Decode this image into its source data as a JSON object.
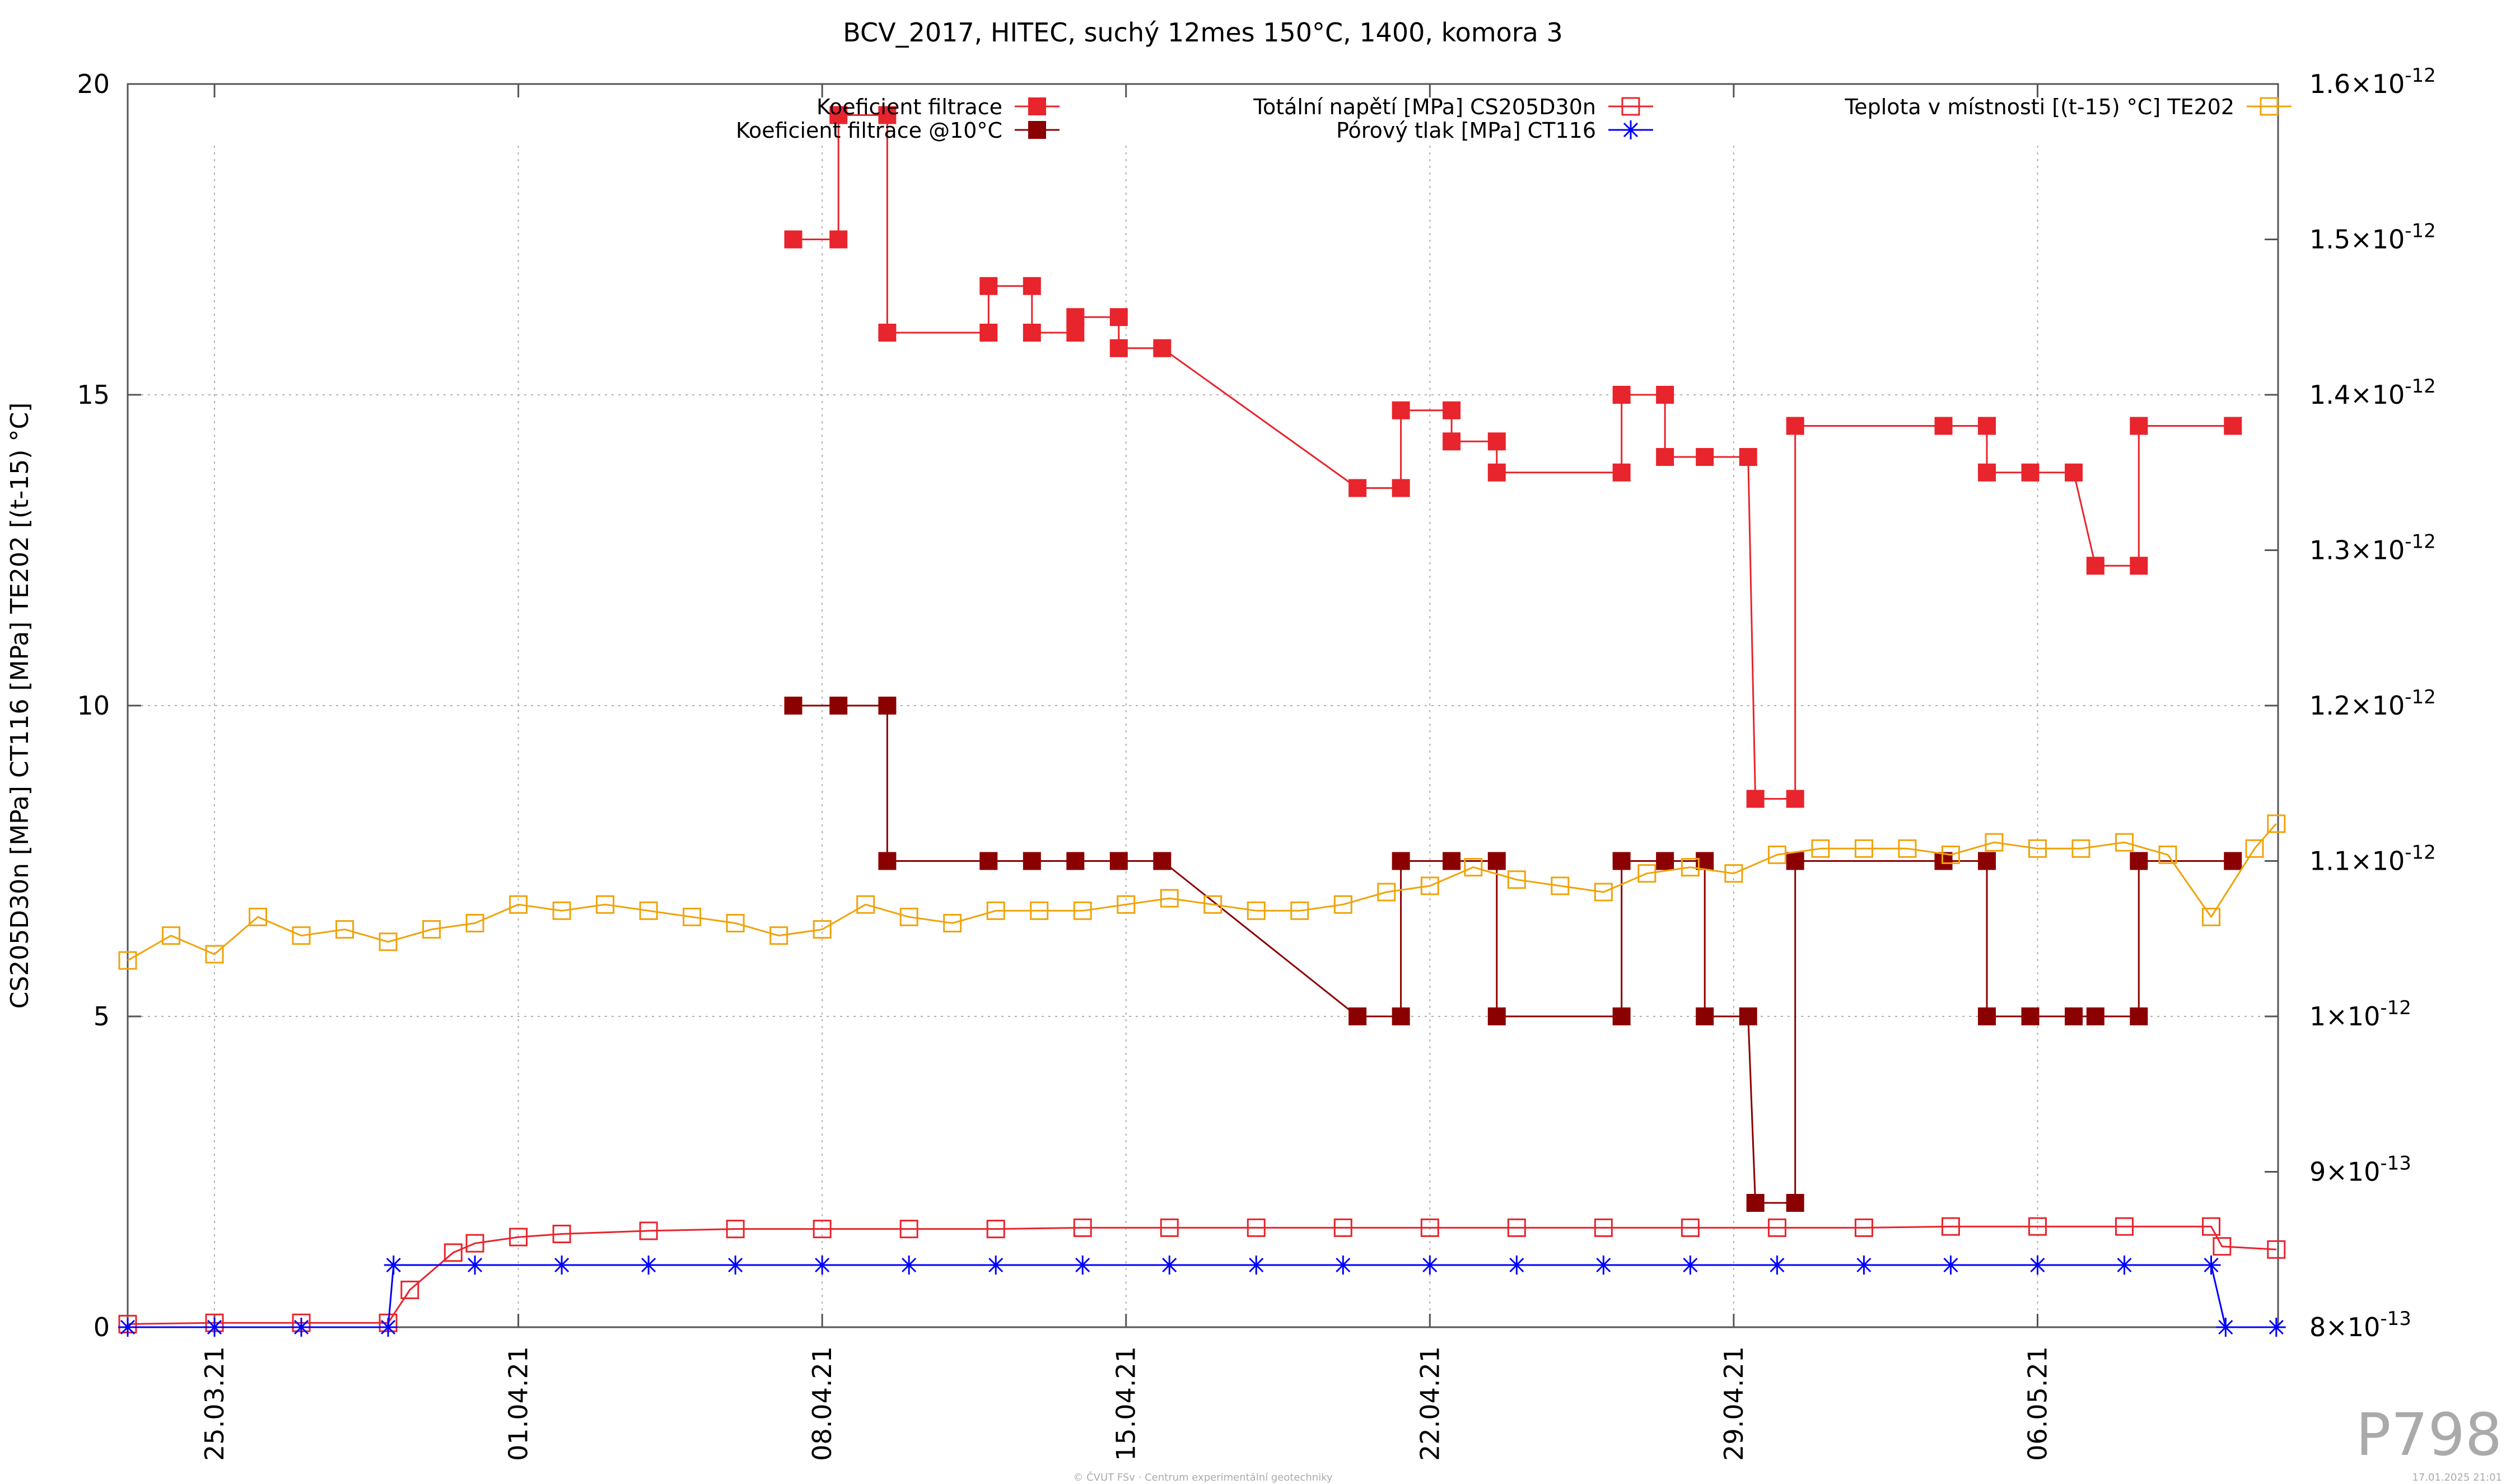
{
  "chart_data": {
    "type": "line",
    "title": "BCV_2017, HITEC, suchý 12mes 150°C, 1400, komora 3",
    "ylabel_left": "CS205D30n [MPa] CT116 [MPa] TE202 [(t-15) °C]",
    "x_range": [
      "2021-03-23",
      "2021-05-11T13:00"
    ],
    "x_ticks": [
      {
        "date": "2021-03-25",
        "label": "25.03.21"
      },
      {
        "date": "2021-04-01",
        "label": "01.04.21"
      },
      {
        "date": "2021-04-08",
        "label": "08.04.21"
      },
      {
        "date": "2021-04-15",
        "label": "15.04.21"
      },
      {
        "date": "2021-04-22",
        "label": "22.04.21"
      },
      {
        "date": "2021-04-29",
        "label": "29.04.21"
      },
      {
        "date": "2021-05-06",
        "label": "06.05.21"
      }
    ],
    "y_left": {
      "min": 0,
      "max": 20,
      "ticks": [
        "0",
        "5",
        "10",
        "15",
        "20"
      ]
    },
    "y_right": {
      "min": 8e-13,
      "max": 1.6e-12,
      "ticks": [
        {
          "v": 8e-13,
          "mant": "8",
          "exp": "-13"
        },
        {
          "v": 9e-13,
          "mant": "9",
          "exp": "-13"
        },
        {
          "v": 1e-12,
          "mant": "1",
          "exp": "-12"
        },
        {
          "v": 1.1e-12,
          "mant": "1.1",
          "exp": "-12"
        },
        {
          "v": 1.2e-12,
          "mant": "1.2",
          "exp": "-12"
        },
        {
          "v": 1.3e-12,
          "mant": "1.3",
          "exp": "-12"
        },
        {
          "v": 1.4e-12,
          "mant": "1.4",
          "exp": "-12"
        },
        {
          "v": 1.5e-12,
          "mant": "1.5",
          "exp": "-12"
        },
        {
          "v": 1.6e-12,
          "mant": "1.6",
          "exp": "-12"
        }
      ],
      "times_sign": "×10"
    },
    "grid": true,
    "legend_position": "top",
    "series": [
      {
        "name": "Koeficient filtrace",
        "axis": "right",
        "color": "#e8242c",
        "marker": "filled-square",
        "line": "step",
        "x": [
          "2021-04-07T08:00",
          "2021-04-08T09:00",
          "2021-04-08T09:00",
          "2021-04-09T12:00",
          "2021-04-09T12:00",
          "2021-04-11T20:00",
          "2021-04-11T20:00",
          "2021-04-12T20:00",
          "2021-04-12T20:00",
          "2021-04-13T20:00",
          "2021-04-13T20:00",
          "2021-04-14T20:00",
          "2021-04-14T20:00",
          "2021-04-15T20:00",
          "2021-04-20T08:00",
          "2021-04-21T08:00",
          "2021-04-21T08:00",
          "2021-04-22T12:00",
          "2021-04-22T12:00",
          "2021-04-23T13:00",
          "2021-04-23T13:00",
          "2021-04-26T10:00",
          "2021-04-26T10:00",
          "2021-04-27T10:00",
          "2021-04-27T10:00",
          "2021-04-28T08:00",
          "2021-04-29T08:00",
          "2021-04-29T12:00",
          "2021-04-30T10:00",
          "2021-04-30T10:00",
          "2021-05-03T20:00",
          "2021-05-04T20:00",
          "2021-05-04T20:00",
          "2021-05-05T20:00",
          "2021-05-06T20:00",
          "2021-05-07T08:00",
          "2021-05-08T08:00",
          "2021-05-08T08:00",
          "2021-05-10T12:00"
        ],
        "values": [
          1.5e-12,
          1.5e-12,
          1.58e-12,
          1.58e-12,
          1.44e-12,
          1.44e-12,
          1.47e-12,
          1.47e-12,
          1.44e-12,
          1.44e-12,
          1.45e-12,
          1.45e-12,
          1.43e-12,
          1.43e-12,
          1.34e-12,
          1.34e-12,
          1.39e-12,
          1.39e-12,
          1.37e-12,
          1.37e-12,
          1.35e-12,
          1.35e-12,
          1.4e-12,
          1.4e-12,
          1.36e-12,
          1.36e-12,
          1.36e-12,
          1.14e-12,
          1.14e-12,
          1.38e-12,
          1.38e-12,
          1.38e-12,
          1.35e-12,
          1.35e-12,
          1.35e-12,
          1.29e-12,
          1.29e-12,
          1.38e-12,
          1.38e-12
        ]
      },
      {
        "name": "Koeficient filtrace @10°C",
        "axis": "right",
        "color": "#8b0000",
        "marker": "filled-square",
        "line": "step",
        "x": [
          "2021-04-07T08:00",
          "2021-04-08T09:00",
          "2021-04-09T12:00",
          "2021-04-09T12:00",
          "2021-04-11T20:00",
          "2021-04-12T20:00",
          "2021-04-13T20:00",
          "2021-04-14T20:00",
          "2021-04-15T20:00",
          "2021-04-20T08:00",
          "2021-04-21T08:00",
          "2021-04-21T08:00",
          "2021-04-22T12:00",
          "2021-04-23T13:00",
          "2021-04-23T13:00",
          "2021-04-26T10:00",
          "2021-04-26T10:00",
          "2021-04-27T10:00",
          "2021-04-28T08:00",
          "2021-04-28T08:00",
          "2021-04-29T08:00",
          "2021-04-29T12:00",
          "2021-04-30T10:00",
          "2021-04-30T10:00",
          "2021-05-03T20:00",
          "2021-05-04T20:00",
          "2021-05-04T20:00",
          "2021-05-05T20:00",
          "2021-05-06T20:00",
          "2021-05-07T08:00",
          "2021-05-08T08:00",
          "2021-05-08T08:00",
          "2021-05-10T12:00"
        ],
        "values": [
          1.2e-12,
          1.2e-12,
          1.2e-12,
          1.1e-12,
          1.1e-12,
          1.1e-12,
          1.1e-12,
          1.1e-12,
          1.1e-12,
          1e-12,
          1e-12,
          1.1e-12,
          1.1e-12,
          1.1e-12,
          1e-12,
          1e-12,
          1.1e-12,
          1.1e-12,
          1.1e-12,
          1e-12,
          1e-12,
          8.8e-13,
          8.8e-13,
          1.1e-12,
          1.1e-12,
          1.1e-12,
          1e-12,
          1e-12,
          1e-12,
          1e-12,
          1e-12,
          1.1e-12,
          1.1e-12
        ]
      },
      {
        "name": "Totální napětí [MPa] CS205D30n",
        "axis": "left",
        "color": "#e8242c",
        "marker": "open-square",
        "line": "solid",
        "x": [
          "2021-03-23",
          "2021-03-25",
          "2021-03-27",
          "2021-03-29",
          "2021-03-29T12:00",
          "2021-03-30T12:00",
          "2021-03-31",
          "2021-04-01",
          "2021-04-02",
          "2021-04-04",
          "2021-04-06",
          "2021-04-08",
          "2021-04-10",
          "2021-04-12",
          "2021-04-14",
          "2021-04-16",
          "2021-04-18",
          "2021-04-20",
          "2021-04-22",
          "2021-04-24",
          "2021-04-26",
          "2021-04-28",
          "2021-04-30",
          "2021-05-02",
          "2021-05-04",
          "2021-05-06",
          "2021-05-08",
          "2021-05-10",
          "2021-05-10T06:00",
          "2021-05-11T12:00"
        ],
        "values": [
          0.05,
          0.07,
          0.07,
          0.07,
          0.6,
          1.2,
          1.35,
          1.45,
          1.5,
          1.55,
          1.58,
          1.58,
          1.58,
          1.58,
          1.6,
          1.6,
          1.6,
          1.6,
          1.6,
          1.6,
          1.6,
          1.6,
          1.6,
          1.6,
          1.62,
          1.62,
          1.62,
          1.62,
          1.3,
          1.25
        ]
      },
      {
        "name": "Pórový tlak [MPa] CT116",
        "axis": "left",
        "color": "#0000ff",
        "marker": "star",
        "line": "solid",
        "x": [
          "2021-03-23",
          "2021-03-25",
          "2021-03-27",
          "2021-03-29",
          "2021-03-29T03:00",
          "2021-03-31",
          "2021-04-02",
          "2021-04-04",
          "2021-04-06",
          "2021-04-08",
          "2021-04-10",
          "2021-04-12",
          "2021-04-14",
          "2021-04-16",
          "2021-04-18",
          "2021-04-20",
          "2021-04-22",
          "2021-04-24",
          "2021-04-26",
          "2021-04-28",
          "2021-04-30",
          "2021-05-02",
          "2021-05-04",
          "2021-05-06",
          "2021-05-08",
          "2021-05-10",
          "2021-05-10T08:00",
          "2021-05-11T12:00"
        ],
        "values": [
          0,
          0,
          0,
          0,
          1.0,
          1.0,
          1.0,
          1.0,
          1.0,
          1.0,
          1.0,
          1.0,
          1.0,
          1.0,
          1.0,
          1.0,
          1.0,
          1.0,
          1.0,
          1.0,
          1.0,
          1.0,
          1.0,
          1.0,
          1.0,
          1.0,
          0,
          0
        ]
      },
      {
        "name": "Teplota v místnosti [(t-15) °C] TE202",
        "axis": "left",
        "color": "#f0a30a",
        "marker": "open-square",
        "line": "solid",
        "x": [
          "2021-03-23",
          "2021-03-24",
          "2021-03-25",
          "2021-03-26",
          "2021-03-27",
          "2021-03-28",
          "2021-03-29",
          "2021-03-30",
          "2021-03-31",
          "2021-04-01",
          "2021-04-02",
          "2021-04-03",
          "2021-04-04",
          "2021-04-05",
          "2021-04-06",
          "2021-04-07",
          "2021-04-08",
          "2021-04-09",
          "2021-04-10",
          "2021-04-11",
          "2021-04-12",
          "2021-04-13",
          "2021-04-14",
          "2021-04-15",
          "2021-04-16",
          "2021-04-17",
          "2021-04-18",
          "2021-04-19",
          "2021-04-20",
          "2021-04-21",
          "2021-04-22",
          "2021-04-23",
          "2021-04-24",
          "2021-04-25",
          "2021-04-26",
          "2021-04-27",
          "2021-04-28",
          "2021-04-29",
          "2021-04-30",
          "2021-05-01",
          "2021-05-02",
          "2021-05-03",
          "2021-05-04",
          "2021-05-05",
          "2021-05-06",
          "2021-05-07",
          "2021-05-08",
          "2021-05-09",
          "2021-05-10",
          "2021-05-11",
          "2021-05-11T12:00"
        ],
        "values": [
          5.9,
          6.3,
          6.0,
          6.6,
          6.3,
          6.4,
          6.2,
          6.4,
          6.5,
          6.8,
          6.7,
          6.8,
          6.7,
          6.6,
          6.5,
          6.3,
          6.4,
          6.8,
          6.6,
          6.5,
          6.7,
          6.7,
          6.7,
          6.8,
          6.9,
          6.8,
          6.7,
          6.7,
          6.8,
          7.0,
          7.1,
          7.4,
          7.2,
          7.1,
          7.0,
          7.3,
          7.4,
          7.3,
          7.6,
          7.7,
          7.7,
          7.7,
          7.6,
          7.8,
          7.7,
          7.7,
          7.8,
          7.6,
          6.6,
          7.7,
          8.1
        ]
      }
    ]
  },
  "watermark": "P798",
  "footer_credit": "© ČVUT FSv · Centrum experimentální geotechniky",
  "footer_timestamp": "17.01.2025 21:01"
}
